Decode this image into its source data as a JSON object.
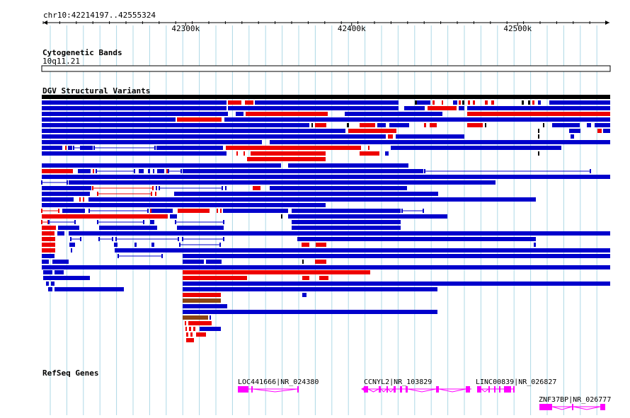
{
  "browser": {
    "region_label": "chr10:42214197..42555324",
    "ruler_ticks": [
      {
        "label": "42300k",
        "pos": 42300000
      },
      {
        "label": "42400k",
        "pos": 42400000
      },
      {
        "label": "42500k",
        "pos": 42500000
      }
    ],
    "region_start": 42214197,
    "region_end": 42555324
  },
  "tracks": {
    "cytoband": {
      "title": "Cytogenetic Bands",
      "band_label": "10q11.21"
    },
    "dgv": {
      "title": "DGV Structural Variants"
    },
    "refseq": {
      "title": "RefSeq Genes",
      "genes": [
        {
          "label": "LOC441666|NR_024380"
        },
        {
          "label": "CCNYL2|NR_103829"
        },
        {
          "label": "LINC00839|NR_026827"
        },
        {
          "label": "ZNF37BP|NR_026777"
        }
      ]
    }
  },
  "colors": {
    "gain": "#0000cc",
    "loss": "#ee0000",
    "complex": "#8b4513",
    "gene": "#ff00ff",
    "grid": "#add8e6",
    "dark": "#000000"
  }
}
